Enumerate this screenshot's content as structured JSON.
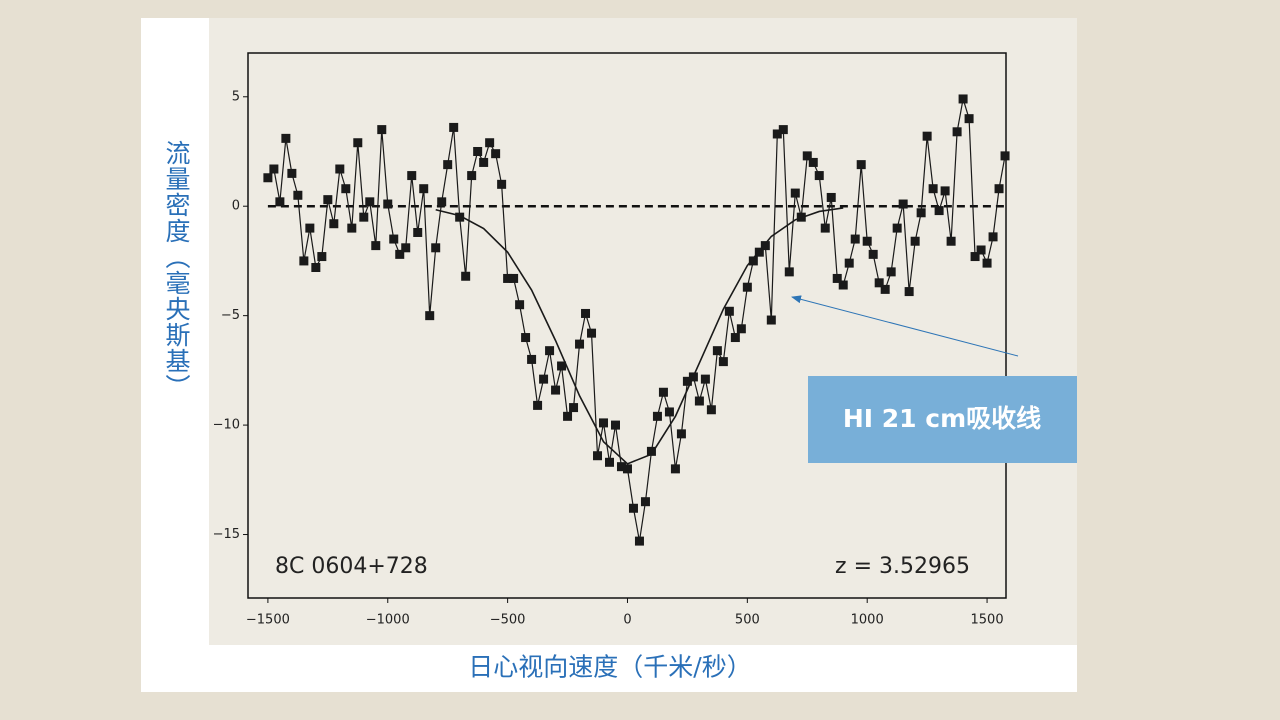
{
  "chart_data": {
    "type": "line",
    "y_label": "流量密度（毫央斯基）",
    "x_label": "日心视向速度（千米/秒）",
    "annotations": [
      "8C 0604+728",
      "z = 3.52965"
    ],
    "callout": "HI 21 cm吸收线",
    "hline": 0,
    "xlim": [
      -1583,
      1579
    ],
    "ylim": [
      -17.9,
      7.0
    ],
    "xticks": [
      {
        "value": -1500,
        "label": "−1500"
      },
      {
        "value": -1000,
        "label": "−1000"
      },
      {
        "value": -500,
        "label": "−500"
      },
      0,
      500,
      1000,
      1500
    ],
    "yticks": [
      5,
      0,
      {
        "value": -5,
        "label": "−5"
      },
      {
        "value": -10,
        "label": "−10"
      },
      {
        "value": -15,
        "label": "−15"
      }
    ],
    "x": [
      -1500,
      -1475,
      -1450,
      -1425,
      -1400,
      -1375,
      -1350,
      -1325,
      -1300,
      -1275,
      -1250,
      -1225,
      -1200,
      -1175,
      -1150,
      -1125,
      -1100,
      -1075,
      -1050,
      -1025,
      -1000,
      -975,
      -950,
      -925,
      -900,
      -875,
      -850,
      -825,
      -800,
      -775,
      -750,
      -725,
      -700,
      -675,
      -650,
      -625,
      -600,
      -575,
      -550,
      -525,
      -500,
      -475,
      -450,
      -425,
      -400,
      -375,
      -350,
      -325,
      -300,
      -275,
      -250,
      -225,
      -200,
      -175,
      -150,
      -125,
      -100,
      -75,
      -50,
      -25,
      0,
      25,
      50,
      75,
      100,
      125,
      150,
      175,
      200,
      225,
      250,
      275,
      300,
      325,
      350,
      375,
      400,
      425,
      450,
      475,
      500,
      525,
      550,
      575,
      600,
      625,
      650,
      675,
      700,
      725,
      750,
      775,
      800,
      825,
      850,
      875,
      900,
      925,
      950,
      975,
      1000,
      1025,
      1050,
      1075,
      1100,
      1125,
      1150,
      1175,
      1200,
      1225,
      1250,
      1275,
      1300,
      1325,
      1350,
      1375,
      1400,
      1425,
      1450,
      1475,
      1500,
      1525,
      1550,
      1575
    ],
    "series": [
      {
        "color": "#1a1a1a",
        "marker": "square",
        "values": [
          1.3,
          1.7,
          0.2,
          3.1,
          1.5,
          0.5,
          -2.5,
          -1,
          -2.8,
          -2.3,
          0.3,
          -0.8,
          1.7,
          0.8,
          -1,
          2.9,
          -0.5,
          0.2,
          -1.8,
          3.5,
          0.1,
          -1.5,
          -2.2,
          -1.9,
          1.4,
          -1.2,
          0.8,
          -5.0,
          -1.9,
          0.2,
          1.9,
          3.6,
          -0.5,
          -3.2,
          1.4,
          2.5,
          2.0,
          2.9,
          2.4,
          1.0,
          -3.3,
          -3.3,
          -4.5,
          -6.0,
          -7.0,
          -9.1,
          -7.9,
          -6.6,
          -8.4,
          -7.3,
          -9.6,
          -9.2,
          -6.3,
          -4.9,
          -5.8,
          -11.4,
          -9.9,
          -11.7,
          -10.0,
          -11.9,
          -12.0,
          -13.8,
          -15.3,
          -13.5,
          -11.2,
          -9.6,
          -8.5,
          -9.4,
          -12.0,
          -10.4,
          -8.0,
          -7.8,
          -8.9,
          -7.9,
          -9.3,
          -6.6,
          -7.1,
          -4.8,
          -6.0,
          -5.6,
          -3.7,
          -2.5,
          -2.1,
          -1.8,
          -5.2,
          3.3,
          3.5,
          -3.0,
          0.6,
          -0.5,
          2.3,
          2.0,
          1.4,
          -1.0,
          0.4,
          -3.3,
          -3.6,
          -2.6,
          -1.5,
          1.9,
          -1.6,
          -2.2,
          -3.5,
          -3.8,
          -3.0,
          -1.0,
          0.1,
          -3.9,
          -1.6,
          -0.3,
          3.2,
          0.8,
          -0.2,
          0.7,
          -1.6,
          3.4,
          4.9,
          4.0,
          -2.3,
          -2.0,
          -2.6,
          -1.4,
          0.8,
          2.3
        ]
      },
      {
        "color": "#1a1a1a",
        "x": [
          -800,
          -700,
          -600,
          -500,
          -400,
          -300,
          -200,
          -100,
          0,
          100,
          200,
          300,
          400,
          500,
          600,
          700,
          800,
          900
        ],
        "values": [
          -0.16,
          -0.43,
          -1.02,
          -2.1,
          -3.83,
          -6.14,
          -8.66,
          -10.76,
          -11.77,
          -11.33,
          -9.6,
          -7.16,
          -4.7,
          -2.71,
          -1.38,
          -0.62,
          -0.24,
          -0.08
        ]
      }
    ]
  }
}
